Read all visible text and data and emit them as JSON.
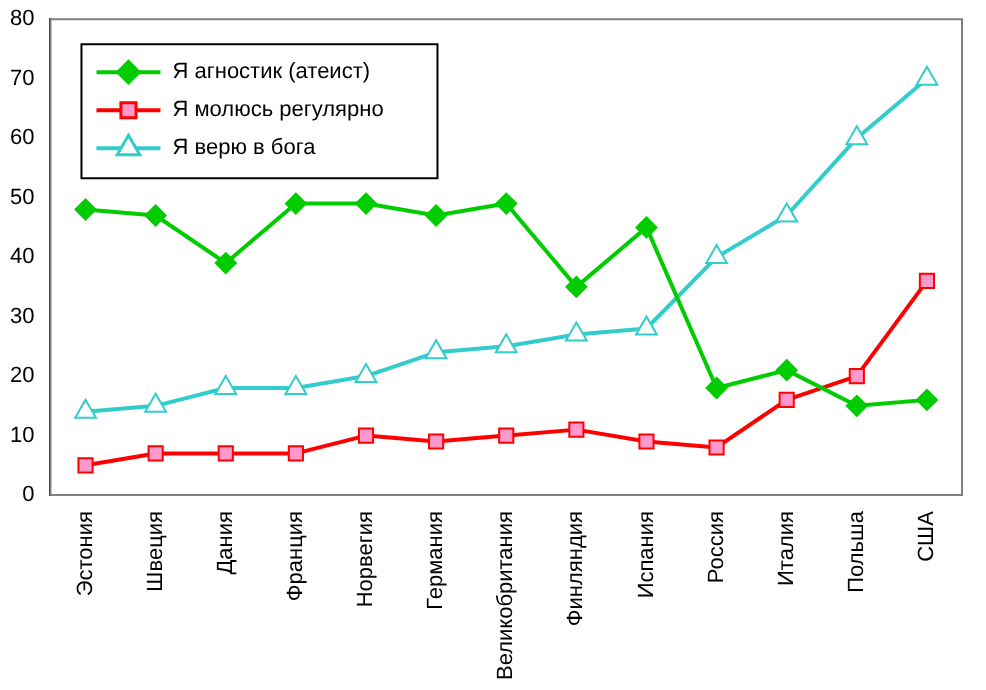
{
  "chart_data": {
    "type": "line",
    "categories": [
      "Эстония",
      "Швеция",
      "Дания",
      "Франция",
      "Норвегия",
      "Германия",
      "Великобритания",
      "Финляндия",
      "Испания",
      "Россия",
      "Италия",
      "Польша",
      "США"
    ],
    "series": [
      {
        "name": "Я агностик (атеист)",
        "color": "#00cc00",
        "marker": "diamond",
        "values": [
          48,
          47,
          39,
          49,
          49,
          47,
          49,
          35,
          45,
          18,
          21,
          15,
          16
        ]
      },
      {
        "name": "Я молюсь регулярно",
        "color": "#ff0000",
        "marker": "square",
        "values": [
          5,
          7,
          7,
          7,
          10,
          9,
          10,
          11,
          9,
          8,
          16,
          20,
          36
        ]
      },
      {
        "name": "Я верю в бога",
        "color": "#33cccc",
        "marker": "triangle",
        "values": [
          14,
          15,
          18,
          18,
          20,
          24,
          25,
          27,
          28,
          40,
          47,
          60,
          70
        ]
      }
    ],
    "ylim": [
      0,
      80
    ],
    "yticks": [
      0,
      10,
      20,
      30,
      40,
      50,
      60,
      70,
      80
    ],
    "grid": false,
    "legend": "top left"
  }
}
